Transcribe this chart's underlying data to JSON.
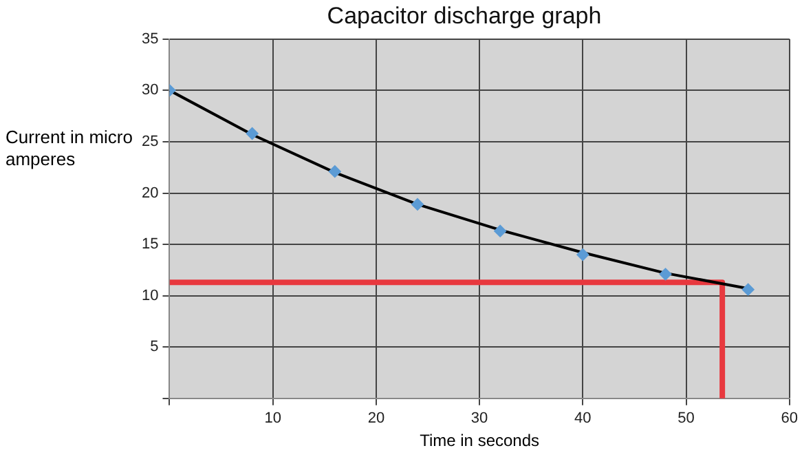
{
  "chart_data": {
    "type": "scatter",
    "title": "Capacitor discharge graph",
    "xlabel": "Time in seconds",
    "ylabel": "Current in micro amperes",
    "xlim": [
      0,
      60
    ],
    "xticks": [
      {
        "value": 0,
        "label": null
      },
      10,
      20,
      30,
      40,
      50,
      60
    ],
    "ylim": [
      0,
      35
    ],
    "yticks": [
      {
        "value": 0,
        "label": null
      },
      5,
      10,
      15,
      20,
      25,
      30,
      35
    ],
    "grid": true,
    "legend": false,
    "marker": "diamond",
    "series": [
      {
        "type": "scatter",
        "color": "#5b9bd5",
        "x": [
          0,
          8,
          16,
          24,
          32,
          40,
          48,
          56
        ],
        "values": [
          30,
          25.8,
          22.1,
          18.9,
          16.3,
          14,
          12.1,
          10.6
        ]
      },
      {
        "type": "line",
        "color": "#000000",
        "marker": "none",
        "x": [
          0,
          8,
          16,
          24,
          32,
          40,
          48,
          56
        ],
        "values": [
          30,
          25.7,
          22,
          18.9,
          16.4,
          14.2,
          12.2,
          10.7
        ]
      },
      {
        "type": "line",
        "color": "#e8393f",
        "marker": "none",
        "x": [
          0,
          53.5,
          53.5
        ],
        "values": [
          11.3,
          11.3,
          0
        ]
      }
    ]
  }
}
